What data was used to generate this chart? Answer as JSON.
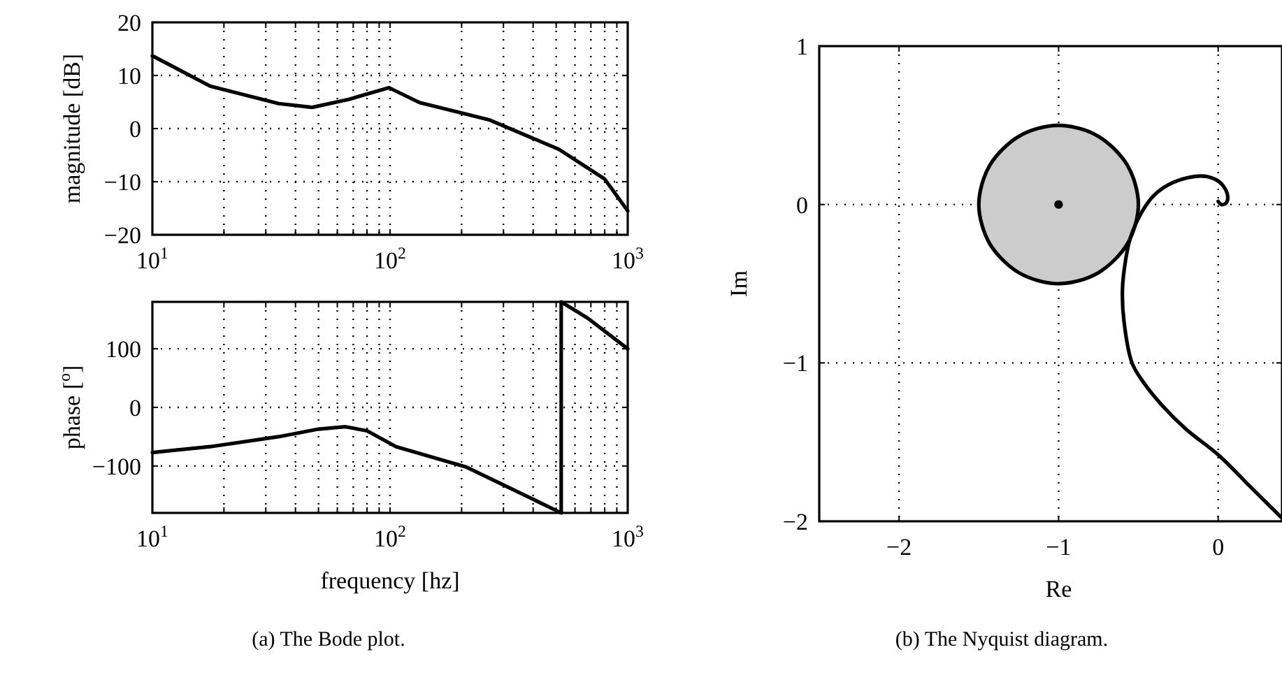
{
  "chart_data": [
    {
      "type": "line",
      "ylabel": "magnitude [dB]",
      "log": "x",
      "grid": true,
      "line_style": "solid",
      "marker": "none",
      "xlim": [
        10,
        1000
      ],
      "ylim": [
        -20,
        20
      ],
      "yticks": [
        -20,
        -10,
        0,
        10,
        20
      ],
      "xticks": [
        {
          "value": 10,
          "label": "10$^{1}$"
        },
        {
          "value": 20,
          "label": null
        },
        {
          "value": 30,
          "label": null
        },
        {
          "value": 40,
          "label": null
        },
        {
          "value": 50,
          "label": null
        },
        {
          "value": 60,
          "label": null
        },
        {
          "value": 70,
          "label": null
        },
        {
          "value": 80,
          "label": null
        },
        {
          "value": 90,
          "label": null
        },
        {
          "value": 100,
          "label": "10$^{2}$"
        },
        {
          "value": 200,
          "label": null
        },
        {
          "value": 300,
          "label": null
        },
        {
          "value": 400,
          "label": null
        },
        {
          "value": 500,
          "label": null
        },
        {
          "value": 600,
          "label": null
        },
        {
          "value": 700,
          "label": null
        },
        {
          "value": 800,
          "label": null
        },
        {
          "value": 900,
          "label": null
        },
        {
          "value": 1000,
          "label": "10$^{3}$"
        }
      ],
      "x": [
        10,
        17.5,
        34,
        47,
        67,
        99,
        133,
        263,
        513,
        800,
        1000
      ],
      "series": [
        {
          "color": "#000000",
          "values": [
            13.7,
            8,
            4.7,
            4,
            5.5,
            7.7,
            4.9,
            1.6,
            -3.9,
            -9.5,
            -15.5
          ]
        }
      ]
    },
    {
      "type": "line",
      "ylabel": "phase [$^{o}$]",
      "xlabel": "frequency [hz]",
      "log": "x",
      "grid": true,
      "line_style": "solid",
      "marker": "none",
      "xlim": [
        10,
        1000
      ],
      "ylim": [
        -180,
        180
      ],
      "yticks": [
        -100,
        0,
        100
      ],
      "xticks": [
        {
          "value": 10,
          "label": "10$^{1}$"
        },
        {
          "value": 20,
          "label": null
        },
        {
          "value": 30,
          "label": null
        },
        {
          "value": 40,
          "label": null
        },
        {
          "value": 50,
          "label": null
        },
        {
          "value": 60,
          "label": null
        },
        {
          "value": 70,
          "label": null
        },
        {
          "value": 80,
          "label": null
        },
        {
          "value": 90,
          "label": null
        },
        {
          "value": 100,
          "label": "10$^{2}$"
        },
        {
          "value": 200,
          "label": null
        },
        {
          "value": 300,
          "label": null
        },
        {
          "value": 400,
          "label": null
        },
        {
          "value": 500,
          "label": null
        },
        {
          "value": 600,
          "label": null
        },
        {
          "value": 700,
          "label": null
        },
        {
          "value": 800,
          "label": null
        },
        {
          "value": 900,
          "label": null
        },
        {
          "value": 1000,
          "label": "10$^{3}$"
        }
      ],
      "x": [
        10,
        17.5,
        34,
        50,
        65,
        80,
        106,
        210,
        525,
        525,
        680,
        1000
      ],
      "series": [
        {
          "color": "#000000",
          "values": [
            -77,
            -67,
            -50,
            -37,
            -33,
            -40,
            -67,
            -102,
            -180,
            180,
            152,
            100
          ]
        }
      ],
      "annotations": [
        "(a) The Bode plot."
      ]
    },
    {
      "type": "line",
      "xlabel": "Re",
      "ylabel": "Im",
      "grid": true,
      "line_style": "solid",
      "xlim": [
        -2.5,
        0.4
      ],
      "ylim": [
        -2,
        1
      ],
      "xticks": [
        -2,
        -1,
        0
      ],
      "yticks": [
        -2,
        -1,
        0,
        1
      ],
      "series": [
        {
          "type": "area",
          "color": "#cccccc",
          "x": [
            -0.5,
            -0.52,
            -0.57,
            -0.65,
            -0.75,
            -0.87,
            -1,
            -1.13,
            -1.25,
            -1.35,
            -1.43,
            -1.48,
            -1.5,
            -1.48,
            -1.43,
            -1.35,
            -1.25,
            -1.13,
            -1,
            -0.87,
            -0.75,
            -0.65,
            -0.57,
            -0.52
          ],
          "values": [
            0,
            0.13,
            0.25,
            0.35,
            0.43,
            0.48,
            0.5,
            0.48,
            0.43,
            0.35,
            0.25,
            0.13,
            0,
            -0.13,
            -0.25,
            -0.35,
            -0.43,
            -0.48,
            -0.5,
            -0.48,
            -0.43,
            -0.35,
            -0.25,
            -0.13
          ]
        },
        {
          "type": "line",
          "color": "#000000",
          "x": [
            0.4,
            0.2,
            0,
            -0.2,
            -0.35,
            -0.47,
            -0.54,
            -0.59,
            -0.6,
            -0.58,
            -0.55,
            -0.48,
            -0.4,
            -0.28,
            -0.11,
            -0.02,
            0.03,
            0.06,
            0.05,
            0.02,
            0
          ],
          "values": [
            -1.98,
            -1.78,
            -1.58,
            -1.42,
            -1.27,
            -1.12,
            -1,
            -0.74,
            -0.54,
            -0.35,
            -0.21,
            -0.05,
            0.06,
            0.14,
            0.18,
            0.16,
            0.12,
            0.05,
            0.01,
            0,
            0.02
          ]
        },
        {
          "type": "scatter",
          "marker": "circle",
          "color": "#000000",
          "x": [
            -1
          ],
          "values": [
            0
          ]
        }
      ],
      "annotations": [
        "(b) The Nyquist diagram."
      ]
    }
  ]
}
